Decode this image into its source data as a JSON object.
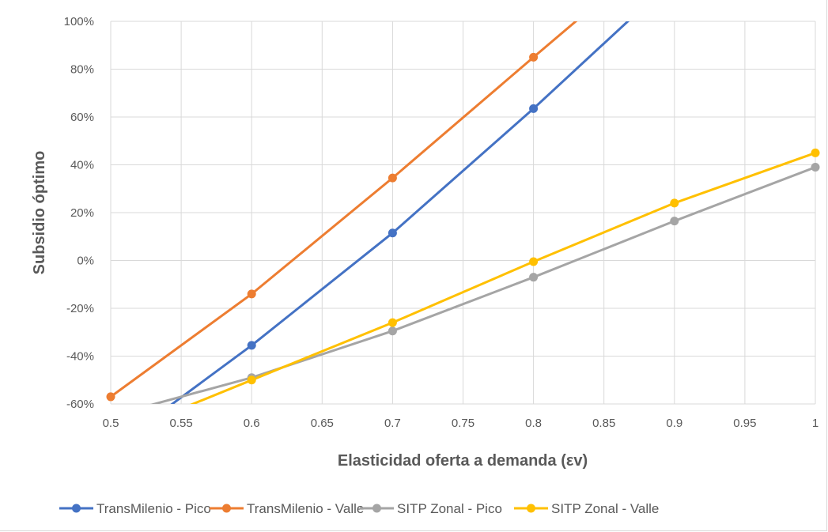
{
  "chart_data": {
    "type": "line",
    "xlabel": "Elasticidad oferta a demanda (εv)",
    "ylabel": "Subsidio óptimo",
    "xlim": [
      0.5,
      1.0
    ],
    "ylim": [
      -60,
      100
    ],
    "x_ticks": [
      "0.5",
      "0.55",
      "0.6",
      "0.65",
      "0.7",
      "0.75",
      "0.8",
      "0.85",
      "0.9",
      "0.95",
      "1"
    ],
    "y_ticks": [
      "100%",
      "80%",
      "60%",
      "40%",
      "20%",
      "0%",
      "-20%",
      "-40%",
      "-60%"
    ],
    "grid": true,
    "legend_position": "bottom",
    "series": [
      {
        "name": "TransMilenio - Pico",
        "color": "#4472C4",
        "x": [
          0.5,
          0.6,
          0.7,
          0.8,
          0.9
        ],
        "y": [
          -79,
          -35.5,
          11.5,
          63.5,
          118
        ],
        "markers": [
          0.6,
          0.7,
          0.8
        ]
      },
      {
        "name": "TransMilenio - Valle",
        "color": "#ED7D31",
        "x": [
          0.5,
          0.6,
          0.7,
          0.8,
          0.9
        ],
        "y": [
          -57,
          -14,
          34.5,
          85,
          135
        ],
        "markers": [
          0.5,
          0.6,
          0.7,
          0.8
        ]
      },
      {
        "name": "SITP Zonal - Pico",
        "color": "#A5A5A5",
        "x": [
          0.5,
          0.6,
          0.7,
          0.8,
          0.9,
          1.0
        ],
        "y": [
          -65,
          -49,
          -29.5,
          -7,
          16.5,
          39
        ],
        "markers": [
          0.6,
          0.7,
          0.8,
          0.9,
          1.0
        ]
      },
      {
        "name": "SITP Zonal - Valle",
        "color": "#FFC000",
        "x": [
          0.5,
          0.6,
          0.7,
          0.8,
          0.9,
          1.0
        ],
        "y": [
          -74,
          -50,
          -26,
          -0.5,
          24,
          45
        ],
        "markers": [
          0.6,
          0.7,
          0.8,
          0.9,
          1.0
        ]
      }
    ]
  }
}
